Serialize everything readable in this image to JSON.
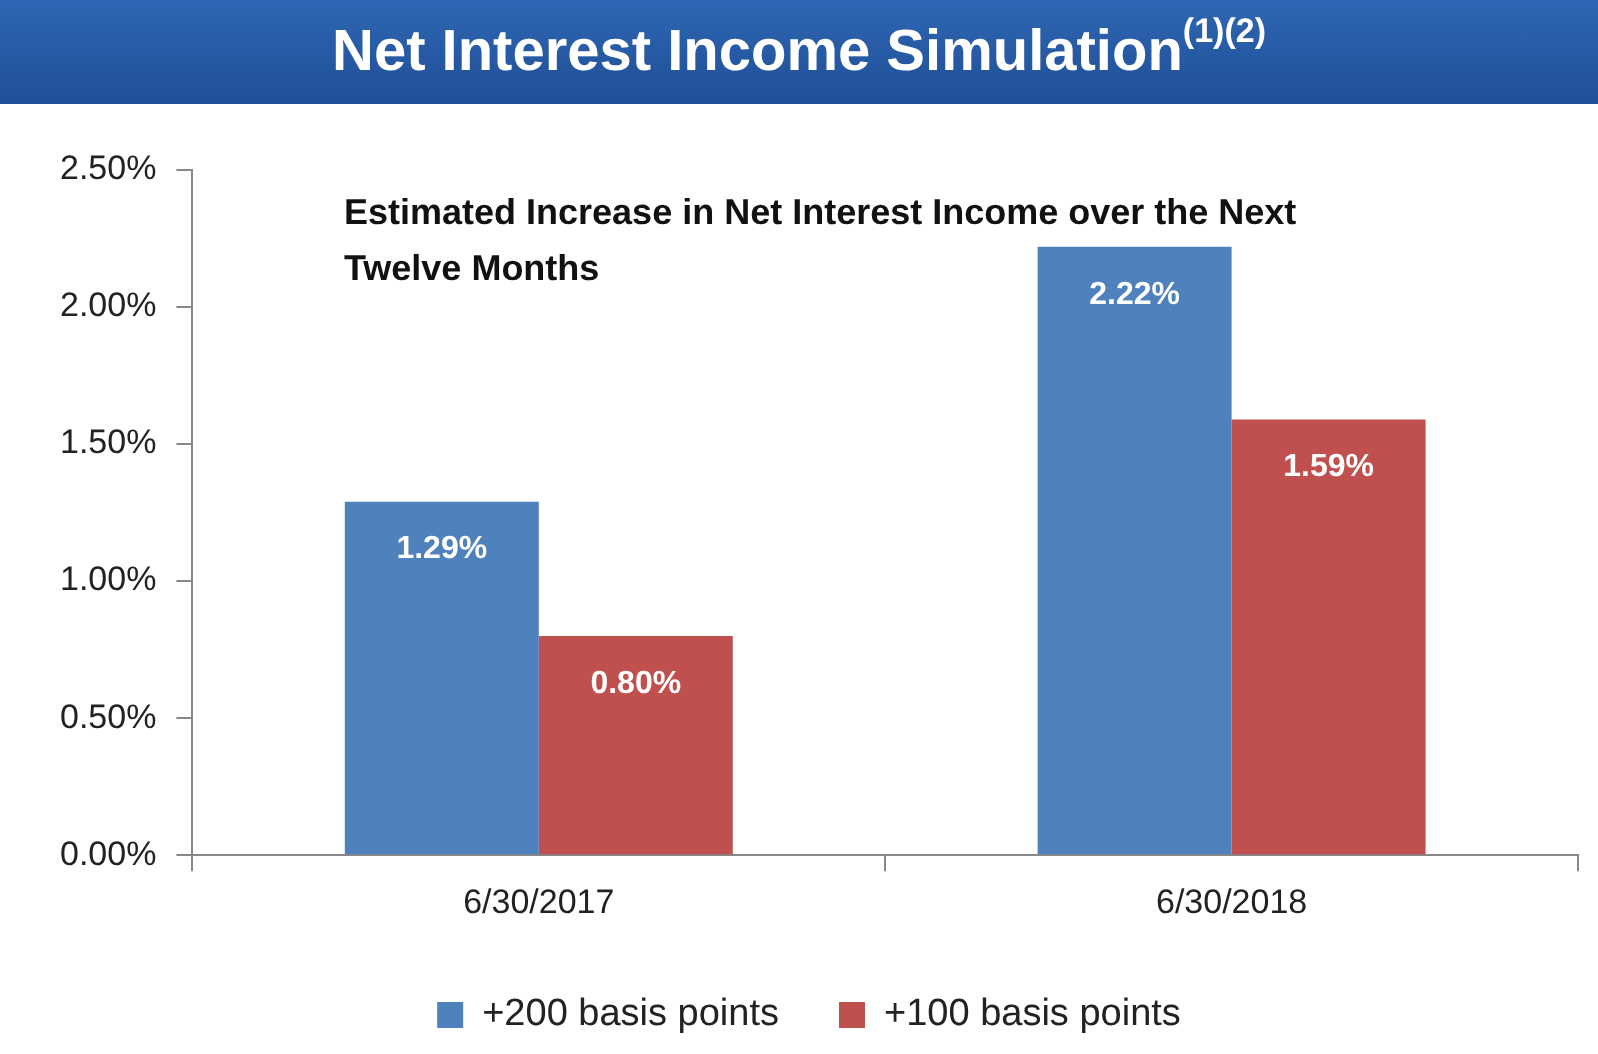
{
  "chart_data": {
    "type": "bar",
    "title": "Net Interest Income Simulation$^{(1)(2)}$",
    "subtitle": "Estimated Increase in Net Interest Income over the Next Twelve Months",
    "categories": [
      "6/30/2017",
      "6/30/2018"
    ],
    "series": [
      {
        "name": "+200 basis points",
        "color": "#4f81bd",
        "values": [
          1.29,
          2.22
        ],
        "value_labels": [
          "1.29%",
          "2.22%"
        ]
      },
      {
        "name": "+100 basis points",
        "color": "#c0504d",
        "values": [
          0.8,
          1.59
        ],
        "value_labels": [
          "0.80%",
          "1.59%"
        ]
      }
    ],
    "ylim": [
      0,
      2.5
    ],
    "yticks": [
      {
        "value": 0,
        "label": "0.00%"
      },
      {
        "value": 0.5,
        "label": "0.50%"
      },
      {
        "value": 1,
        "label": "1.00%"
      },
      {
        "value": 1.5,
        "label": "1.50%"
      },
      {
        "value": 2,
        "label": "2.00%"
      },
      {
        "value": 2.5,
        "label": "2.50%"
      }
    ],
    "grid": false,
    "legend": "bottom"
  }
}
